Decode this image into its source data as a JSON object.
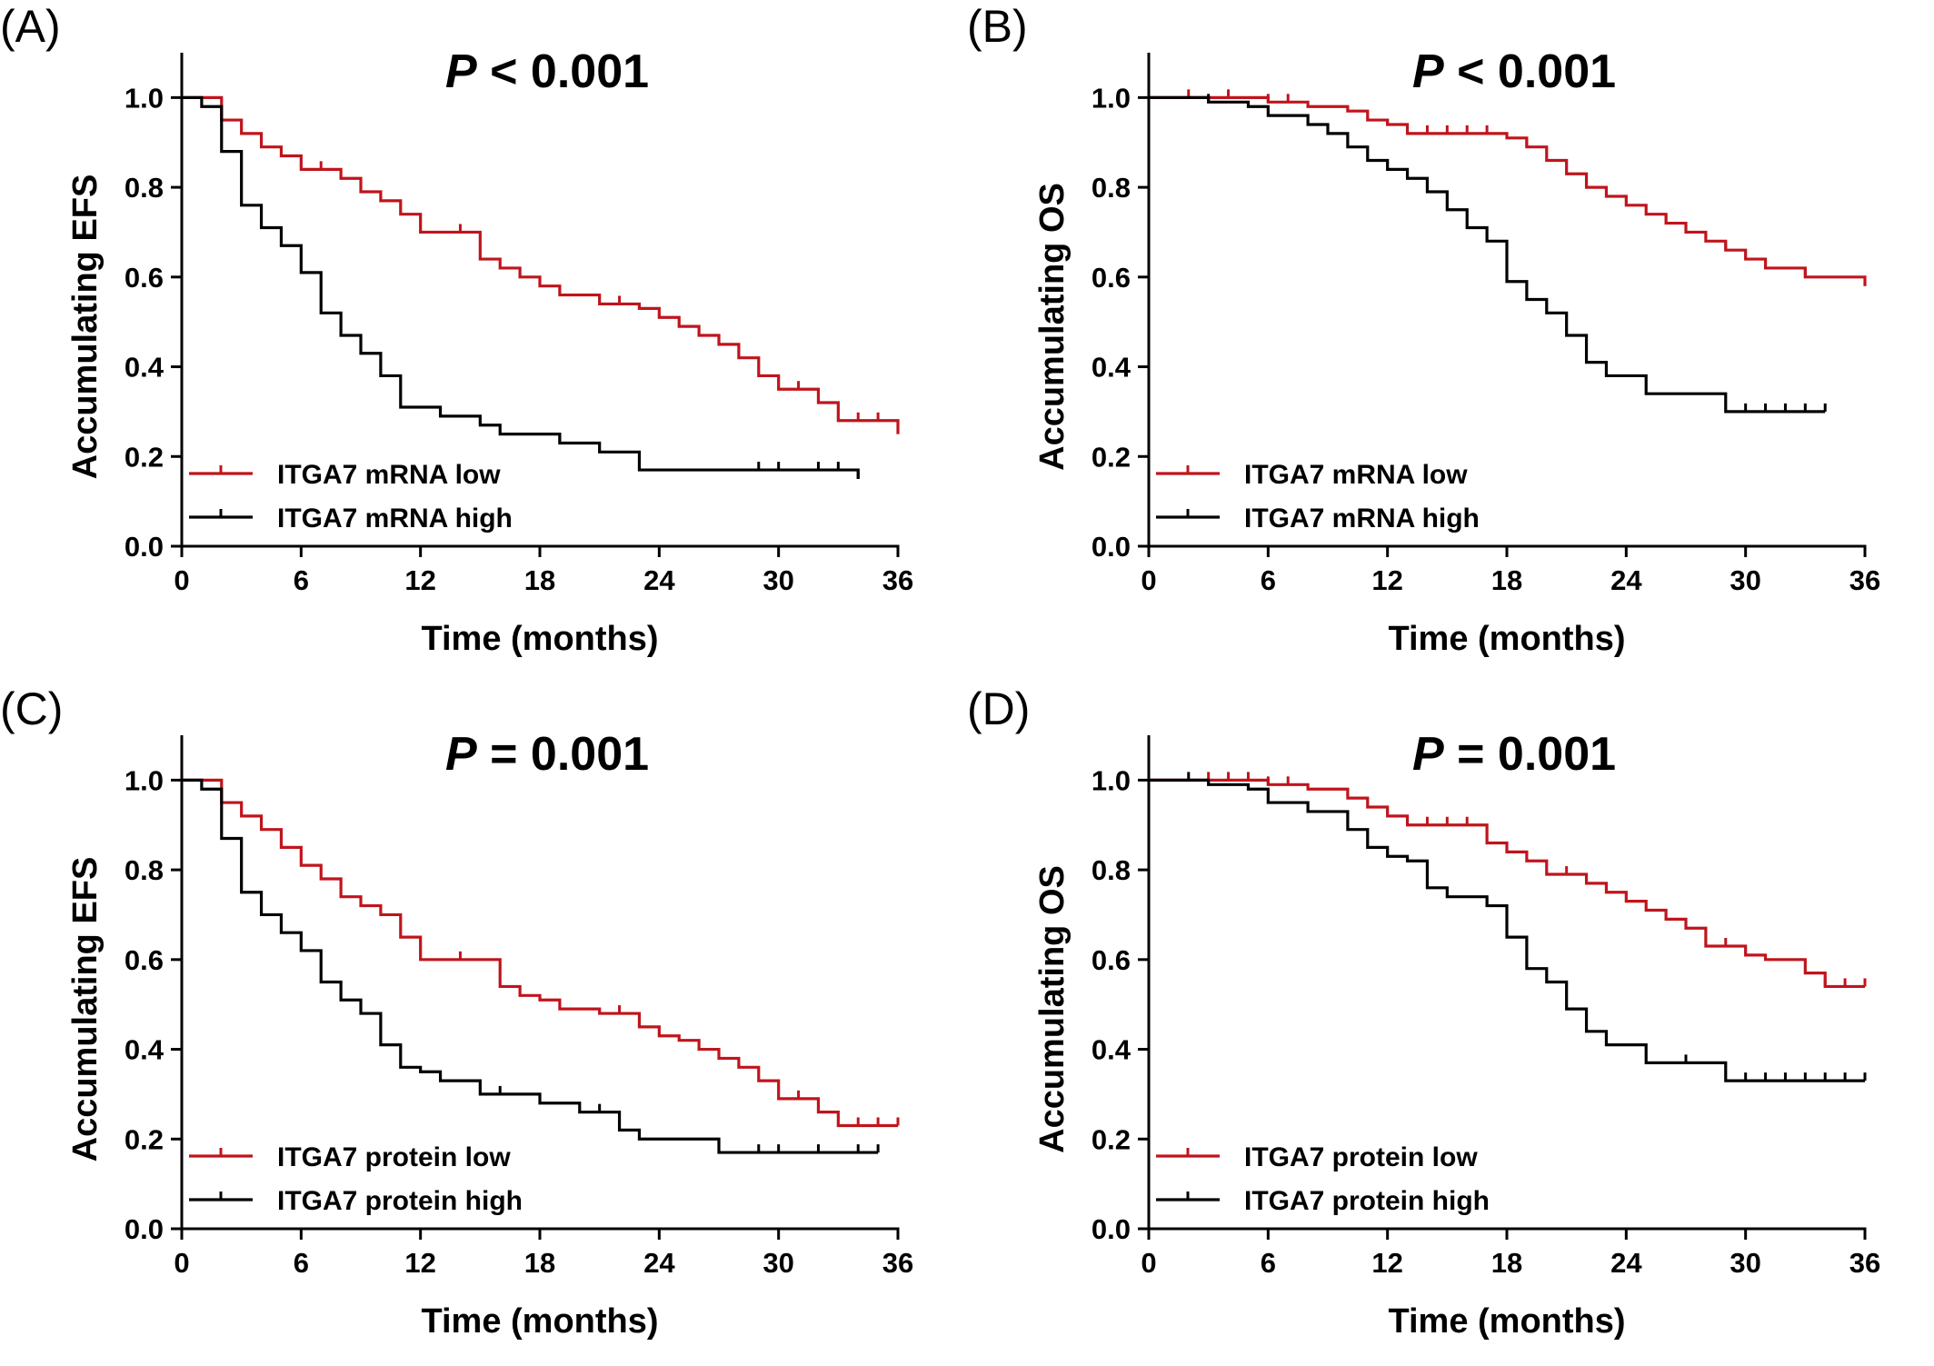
{
  "colors": {
    "low": "#c0141c",
    "high": "#000000"
  },
  "chart_data": [
    {
      "panel": "(A)",
      "type": "line",
      "step": "km",
      "p_prefix": "P",
      "p_rest": " < 0.001",
      "xlabel": "Time (months)",
      "ylabel": "Accumulating EFS",
      "xlim": [
        0,
        36
      ],
      "ylim": [
        0,
        1.1
      ],
      "xticks": [
        "0",
        "6",
        "12",
        "18",
        "24",
        "30",
        "36"
      ],
      "yticks": [
        "0.0",
        "0.2",
        "0.4",
        "0.6",
        "0.8",
        "1.0"
      ],
      "legend_position": "bottom-left",
      "series": [
        {
          "name": "ITGA7 mRNA low",
          "color": "#c0141c",
          "x": [
            0,
            2,
            3,
            4,
            5,
            6,
            8,
            9,
            10,
            11,
            12,
            15,
            16,
            17,
            18,
            19,
            21,
            23,
            24,
            25,
            26,
            27,
            28,
            29,
            30,
            32,
            33,
            36
          ],
          "y": [
            1.0,
            0.95,
            0.92,
            0.89,
            0.87,
            0.84,
            0.82,
            0.79,
            0.77,
            0.74,
            0.7,
            0.64,
            0.62,
            0.6,
            0.58,
            0.56,
            0.54,
            0.53,
            0.51,
            0.49,
            0.47,
            0.45,
            0.42,
            0.38,
            0.35,
            0.32,
            0.28,
            0.25
          ],
          "censor_x": [
            7,
            14,
            22,
            31,
            34,
            35,
            36
          ]
        },
        {
          "name": "ITGA7 mRNA high",
          "color": "#000000",
          "x": [
            0,
            1,
            2,
            3,
            4,
            5,
            6,
            7,
            8,
            9,
            10,
            11,
            13,
            15,
            16,
            19,
            21,
            23,
            34
          ],
          "y": [
            1.0,
            0.98,
            0.88,
            0.76,
            0.71,
            0.67,
            0.61,
            0.52,
            0.47,
            0.43,
            0.38,
            0.31,
            0.29,
            0.27,
            0.25,
            0.23,
            0.21,
            0.17,
            0.15
          ],
          "censor_x": [
            19,
            29,
            30,
            32,
            33,
            34
          ]
        }
      ]
    },
    {
      "panel": "(B)",
      "type": "line",
      "step": "km",
      "p_prefix": "P",
      "p_rest": " < 0.001",
      "xlabel": "Time (months)",
      "ylabel": "Accumulating OS",
      "xlim": [
        0,
        36
      ],
      "ylim": [
        0,
        1.1
      ],
      "xticks": [
        "0",
        "6",
        "12",
        "18",
        "24",
        "30",
        "36"
      ],
      "yticks": [
        "0.0",
        "0.2",
        "0.4",
        "0.6",
        "0.8",
        "1.0"
      ],
      "legend_position": "bottom-left",
      "series": [
        {
          "name": "ITGA7 mRNA low",
          "color": "#c0141c",
          "x": [
            0,
            6,
            8,
            10,
            11,
            12,
            13,
            18,
            19,
            20,
            21,
            22,
            23,
            24,
            25,
            26,
            27,
            28,
            29,
            30,
            31,
            33,
            36
          ],
          "y": [
            1.0,
            0.99,
            0.98,
            0.97,
            0.95,
            0.94,
            0.92,
            0.91,
            0.89,
            0.86,
            0.83,
            0.8,
            0.78,
            0.76,
            0.74,
            0.72,
            0.7,
            0.68,
            0.66,
            0.64,
            0.62,
            0.6,
            0.58
          ],
          "censor_x": [
            2,
            4,
            6,
            7,
            14,
            15,
            16,
            17,
            19,
            26,
            29,
            31,
            33,
            36
          ]
        },
        {
          "name": "ITGA7 mRNA high",
          "color": "#000000",
          "x": [
            0,
            3,
            5,
            6,
            8,
            9,
            10,
            11,
            12,
            13,
            14,
            15,
            16,
            17,
            18,
            19,
            20,
            21,
            22,
            23,
            25,
            29,
            34
          ],
          "y": [
            1.0,
            0.99,
            0.98,
            0.96,
            0.94,
            0.92,
            0.89,
            0.86,
            0.84,
            0.82,
            0.79,
            0.75,
            0.71,
            0.68,
            0.59,
            0.55,
            0.52,
            0.47,
            0.41,
            0.38,
            0.34,
            0.3,
            0.3
          ],
          "censor_x": [
            3,
            30,
            31,
            32,
            33,
            34
          ]
        }
      ]
    },
    {
      "panel": "(C)",
      "type": "line",
      "step": "km",
      "p_prefix": "P",
      "p_rest": " = 0.001",
      "xlabel": "Time (months)",
      "ylabel": "Accumulating EFS",
      "xlim": [
        0,
        36
      ],
      "ylim": [
        0,
        1.1
      ],
      "xticks": [
        "0",
        "6",
        "12",
        "18",
        "24",
        "30",
        "36"
      ],
      "yticks": [
        "0.0",
        "0.2",
        "0.4",
        "0.6",
        "0.8",
        "1.0"
      ],
      "legend_position": "bottom-left",
      "series": [
        {
          "name": "ITGA7 protein low",
          "color": "#c0141c",
          "x": [
            0,
            2,
            3,
            4,
            5,
            6,
            7,
            8,
            9,
            10,
            11,
            12,
            16,
            17,
            18,
            19,
            21,
            23,
            24,
            25,
            26,
            27,
            28,
            29,
            30,
            32,
            33,
            36
          ],
          "y": [
            1.0,
            0.95,
            0.92,
            0.89,
            0.85,
            0.81,
            0.78,
            0.74,
            0.72,
            0.7,
            0.65,
            0.6,
            0.54,
            0.52,
            0.51,
            0.49,
            0.48,
            0.45,
            0.43,
            0.42,
            0.4,
            0.38,
            0.36,
            0.33,
            0.29,
            0.26,
            0.23,
            0.23
          ],
          "censor_x": [
            14,
            22,
            31,
            34,
            35,
            36
          ]
        },
        {
          "name": "ITGA7 protein high",
          "color": "#000000",
          "x": [
            0,
            1,
            2,
            3,
            4,
            5,
            6,
            7,
            8,
            9,
            10,
            11,
            12,
            13,
            15,
            18,
            20,
            22,
            23,
            27,
            35
          ],
          "y": [
            1.0,
            0.98,
            0.87,
            0.75,
            0.7,
            0.66,
            0.62,
            0.55,
            0.51,
            0.48,
            0.41,
            0.36,
            0.35,
            0.33,
            0.3,
            0.28,
            0.26,
            0.22,
            0.2,
            0.17,
            0.17
          ],
          "censor_x": [
            16,
            21,
            29,
            30,
            32,
            34,
            35
          ]
        }
      ]
    },
    {
      "panel": "(D)",
      "type": "line",
      "step": "km",
      "p_prefix": "P",
      "p_rest": " = 0.001",
      "xlabel": "Time (months)",
      "ylabel": "Accumulating OS",
      "xlim": [
        0,
        36
      ],
      "ylim": [
        0,
        1.1
      ],
      "xticks": [
        "0",
        "6",
        "12",
        "18",
        "24",
        "30",
        "36"
      ],
      "yticks": [
        "0.0",
        "0.2",
        "0.4",
        "0.6",
        "0.8",
        "1.0"
      ],
      "legend_position": "bottom-left",
      "series": [
        {
          "name": "ITGA7 protein low",
          "color": "#c0141c",
          "x": [
            0,
            6,
            8,
            10,
            11,
            12,
            13,
            17,
            18,
            19,
            20,
            21,
            22,
            23,
            24,
            25,
            26,
            27,
            28,
            29,
            30,
            31,
            33,
            34,
            36
          ],
          "y": [
            1.0,
            0.99,
            0.98,
            0.96,
            0.94,
            0.92,
            0.9,
            0.86,
            0.84,
            0.82,
            0.79,
            0.79,
            0.77,
            0.75,
            0.73,
            0.71,
            0.69,
            0.67,
            0.63,
            0.63,
            0.61,
            0.6,
            0.57,
            0.54,
            0.54
          ],
          "censor_x": [
            3,
            4,
            5,
            6,
            7,
            14,
            15,
            16,
            21,
            29,
            34,
            35,
            36
          ]
        },
        {
          "name": "ITGA7 protein high",
          "color": "#000000",
          "x": [
            0,
            3,
            5,
            6,
            8,
            10,
            11,
            12,
            13,
            14,
            15,
            17,
            18,
            19,
            20,
            21,
            22,
            23,
            25,
            29,
            36
          ],
          "y": [
            1.0,
            0.99,
            0.98,
            0.95,
            0.93,
            0.89,
            0.85,
            0.83,
            0.82,
            0.76,
            0.74,
            0.72,
            0.65,
            0.58,
            0.55,
            0.49,
            0.44,
            0.41,
            0.37,
            0.33,
            0.33
          ],
          "censor_x": [
            2,
            17,
            27,
            30,
            31,
            32,
            33,
            34,
            35,
            36
          ]
        }
      ]
    }
  ]
}
